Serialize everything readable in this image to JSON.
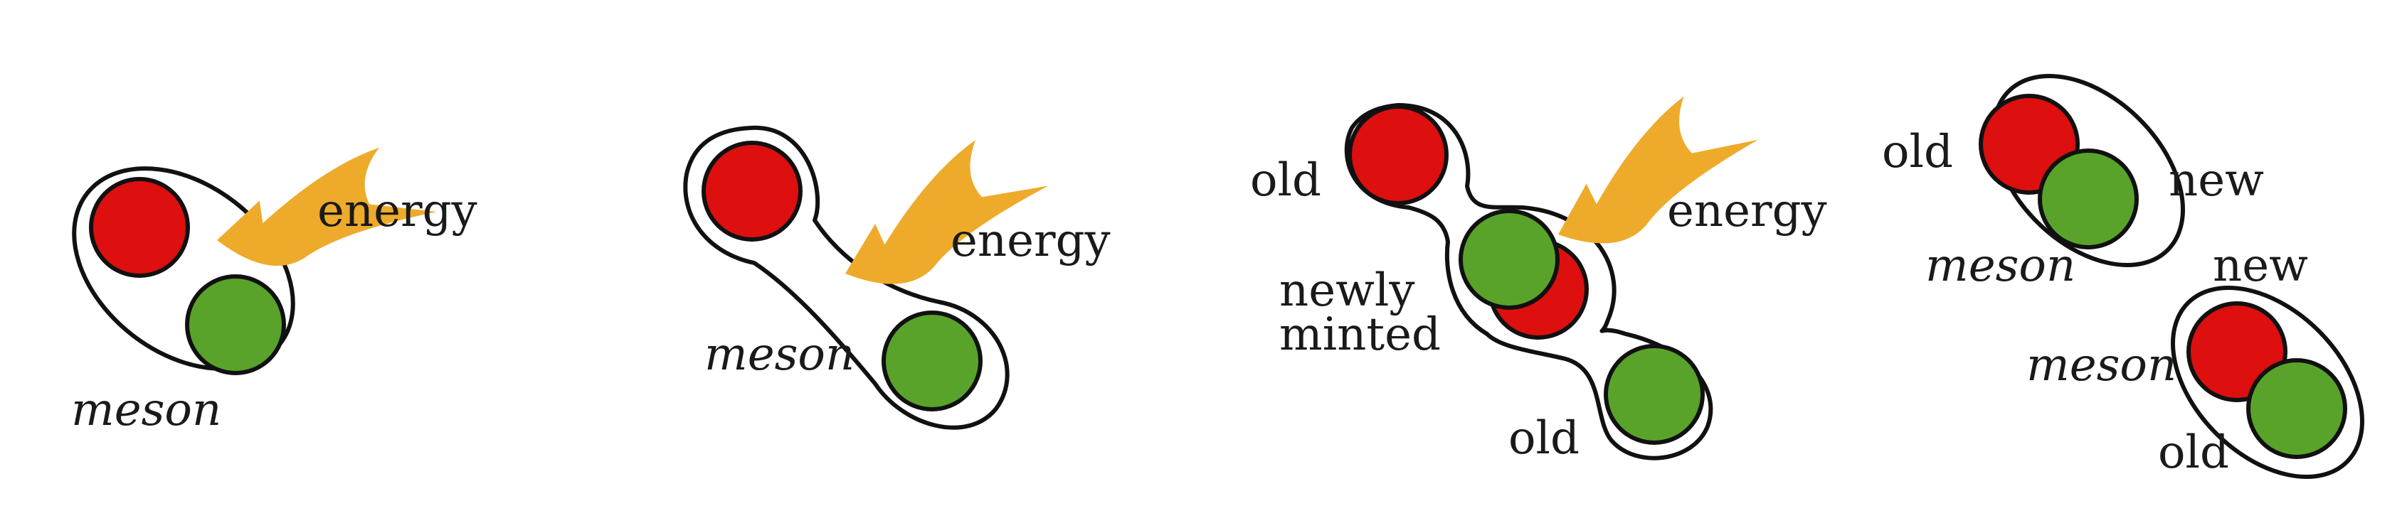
{
  "colors": {
    "quark_red": "#dd0f0f",
    "quark_green": "#5aa32a",
    "energy_arrow": "#eeab2b",
    "outline": "#111111"
  },
  "panels": [
    {
      "id": "panel-1",
      "labels": {
        "energy": "energy",
        "meson": "meson"
      }
    },
    {
      "id": "panel-2",
      "labels": {
        "energy": "energy",
        "meson": "meson"
      }
    },
    {
      "id": "panel-3",
      "labels": {
        "old_top": "old",
        "energy": "energy",
        "newly": "newly",
        "minted": "minted",
        "old_bottom": "old"
      }
    },
    {
      "id": "panel-4",
      "labels": {
        "old_top": "old",
        "new_top": "new",
        "meson_top": "meson",
        "new_bottom": "new",
        "meson_bottom": "meson",
        "old_bottom": "old"
      }
    }
  ]
}
